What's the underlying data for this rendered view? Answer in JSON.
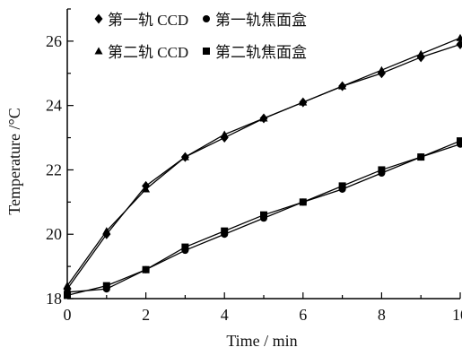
{
  "chart_data": {
    "type": "line",
    "xlabel": "Time / min",
    "ylabel": "Temperature /°C",
    "xlim": [
      0,
      10
    ],
    "ylim": [
      18,
      27
    ],
    "xticks": [
      0,
      2,
      4,
      6,
      8,
      10
    ],
    "yticks": [
      18,
      20,
      22,
      24,
      26
    ],
    "xtick_labels": [
      "0",
      "2",
      "4",
      "6",
      "8",
      "10"
    ],
    "ytick_labels": [
      "18",
      "20",
      "22",
      "24",
      "26"
    ],
    "grid": false,
    "legend_position": "top-left",
    "x": [
      0,
      1,
      2,
      3,
      4,
      5,
      6,
      7,
      8,
      9,
      10
    ],
    "series": [
      {
        "name": "第一轨 CCD",
        "marker": "diamond",
        "color": "#000000",
        "values": [
          18.3,
          20.0,
          21.5,
          22.4,
          23.0,
          23.6,
          24.1,
          24.6,
          25.0,
          25.5,
          25.9
        ]
      },
      {
        "name": "第一轨焦面盒",
        "marker": "circle",
        "color": "#000000",
        "values": [
          18.2,
          18.3,
          18.9,
          19.5,
          20.0,
          20.5,
          21.0,
          21.4,
          21.9,
          22.4,
          22.8
        ]
      },
      {
        "name": "第二轨 CCD",
        "marker": "triangle",
        "color": "#000000",
        "values": [
          18.4,
          20.1,
          21.4,
          22.4,
          23.1,
          23.6,
          24.1,
          24.6,
          25.1,
          25.6,
          26.1
        ]
      },
      {
        "name": "第二轨焦面盒",
        "marker": "square",
        "color": "#000000",
        "values": [
          18.1,
          18.4,
          18.9,
          19.6,
          20.1,
          20.6,
          21.0,
          21.5,
          22.0,
          22.4,
          22.9
        ]
      }
    ]
  }
}
